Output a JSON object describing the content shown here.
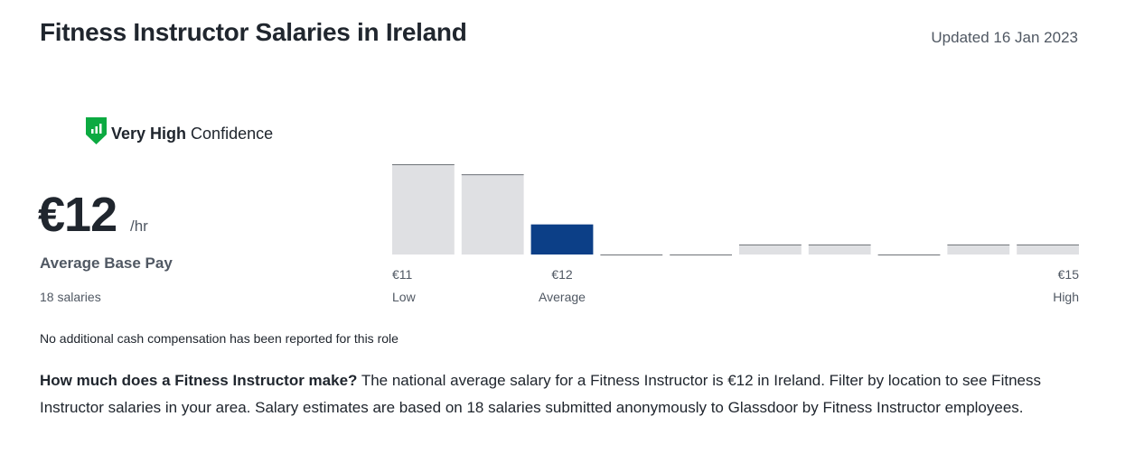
{
  "header": {
    "title": "Fitness Instructor Salaries in Ireland",
    "updated": "Updated 16 Jan 2023"
  },
  "confidence": {
    "level": "Very High",
    "label": "Confidence"
  },
  "pay": {
    "amount": "€12",
    "unit": "/hr",
    "label": "Average Base Pay",
    "count": "18 salaries"
  },
  "chart_data": {
    "type": "bar",
    "values": [
      9,
      8,
      3,
      0,
      0,
      1,
      1,
      0,
      1,
      1
    ],
    "color": "#dfe0e3",
    "highlight": 2,
    "highlight_color": "#0c3f87",
    "markers": [
      {
        "value": "€11",
        "label": "Low"
      },
      {
        "value": "€12",
        "label": "Average"
      },
      {
        "value": "€15",
        "label": "High"
      }
    ]
  },
  "note": "No additional cash compensation has been reported for this role",
  "description": {
    "lead": "How much does a Fitness Instructor make?",
    "text": " The national average salary for a Fitness Instructor is €12 in Ireland. Filter by location to see Fitness Instructor salaries in your area. Salary estimates are based on 18 salaries submitted anonymously to Glassdoor by Fitness Instructor employees."
  }
}
